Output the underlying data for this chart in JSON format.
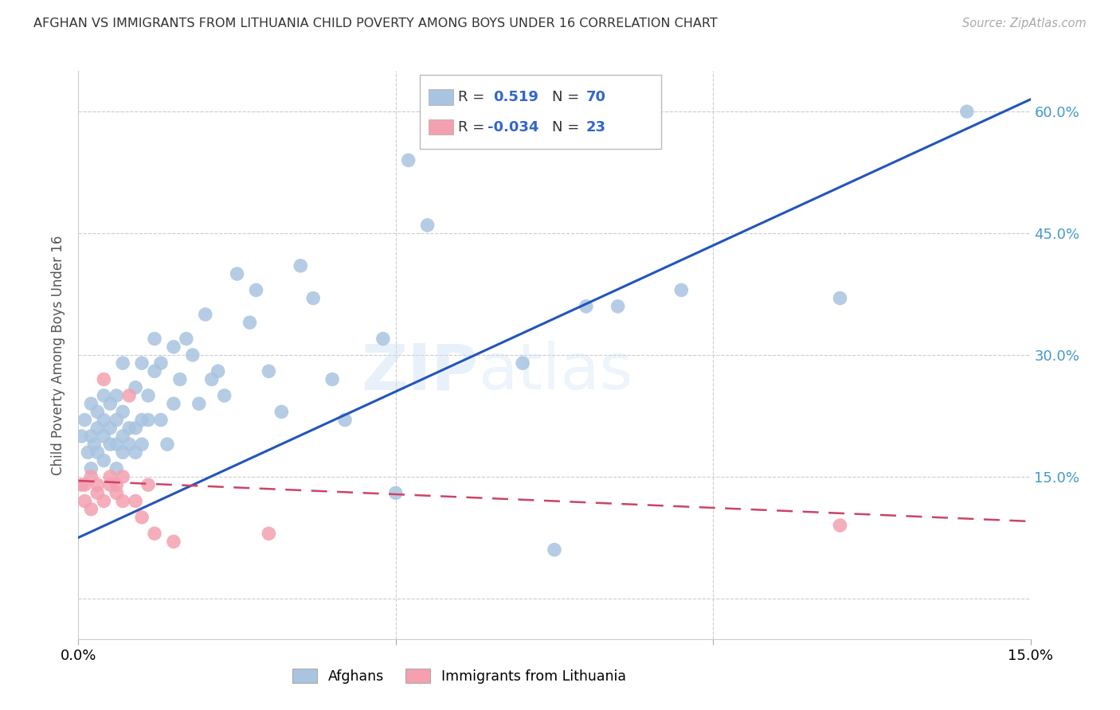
{
  "title": "AFGHAN VS IMMIGRANTS FROM LITHUANIA CHILD POVERTY AMONG BOYS UNDER 16 CORRELATION CHART",
  "source": "Source: ZipAtlas.com",
  "ylabel": "Child Poverty Among Boys Under 16",
  "xlim": [
    0.0,
    0.15
  ],
  "ylim": [
    -0.05,
    0.65
  ],
  "afghan_R": 0.519,
  "afghan_N": 70,
  "lithuania_R": -0.034,
  "lithuania_N": 23,
  "afghan_color": "#a8c4e0",
  "afghan_line_color": "#2255bb",
  "lithuania_color": "#f4a0b0",
  "lithuania_line_color": "#cc4466",
  "watermark": "ZIPatlas",
  "legend_entries": [
    "Afghans",
    "Immigrants from Lithuania"
  ],
  "afghan_line_x0": 0.0,
  "afghan_line_y0": 0.075,
  "afghan_line_x1": 0.15,
  "afghan_line_y1": 0.615,
  "lithuania_line_x0": 0.0,
  "lithuania_line_y0": 0.145,
  "lithuania_line_x1": 0.15,
  "lithuania_line_y1": 0.095,
  "afghan_x": [
    0.0005,
    0.001,
    0.0015,
    0.002,
    0.002,
    0.002,
    0.0025,
    0.003,
    0.003,
    0.003,
    0.004,
    0.004,
    0.004,
    0.004,
    0.005,
    0.005,
    0.005,
    0.006,
    0.006,
    0.006,
    0.006,
    0.007,
    0.007,
    0.007,
    0.007,
    0.008,
    0.008,
    0.009,
    0.009,
    0.009,
    0.01,
    0.01,
    0.01,
    0.011,
    0.011,
    0.012,
    0.012,
    0.013,
    0.013,
    0.014,
    0.015,
    0.015,
    0.016,
    0.017,
    0.018,
    0.019,
    0.02,
    0.021,
    0.022,
    0.023,
    0.025,
    0.027,
    0.028,
    0.03,
    0.032,
    0.035,
    0.037,
    0.04,
    0.042,
    0.048,
    0.05,
    0.052,
    0.055,
    0.07,
    0.075,
    0.08,
    0.085,
    0.095,
    0.12,
    0.14
  ],
  "afghan_y": [
    0.2,
    0.22,
    0.18,
    0.24,
    0.2,
    0.16,
    0.19,
    0.21,
    0.23,
    0.18,
    0.17,
    0.2,
    0.22,
    0.25,
    0.19,
    0.21,
    0.24,
    0.16,
    0.19,
    0.22,
    0.25,
    0.18,
    0.2,
    0.23,
    0.29,
    0.19,
    0.21,
    0.18,
    0.21,
    0.26,
    0.19,
    0.22,
    0.29,
    0.22,
    0.25,
    0.28,
    0.32,
    0.22,
    0.29,
    0.19,
    0.31,
    0.24,
    0.27,
    0.32,
    0.3,
    0.24,
    0.35,
    0.27,
    0.28,
    0.25,
    0.4,
    0.34,
    0.38,
    0.28,
    0.23,
    0.41,
    0.37,
    0.27,
    0.22,
    0.32,
    0.13,
    0.54,
    0.46,
    0.29,
    0.06,
    0.36,
    0.36,
    0.38,
    0.37,
    0.6
  ],
  "lithuania_x": [
    0.0005,
    0.001,
    0.001,
    0.002,
    0.002,
    0.003,
    0.003,
    0.004,
    0.004,
    0.005,
    0.005,
    0.006,
    0.006,
    0.007,
    0.007,
    0.008,
    0.009,
    0.01,
    0.011,
    0.012,
    0.015,
    0.03,
    0.12
  ],
  "lithuania_y": [
    0.14,
    0.12,
    0.14,
    0.11,
    0.15,
    0.13,
    0.14,
    0.27,
    0.12,
    0.14,
    0.15,
    0.14,
    0.13,
    0.12,
    0.15,
    0.25,
    0.12,
    0.1,
    0.14,
    0.08,
    0.07,
    0.08,
    0.09
  ]
}
